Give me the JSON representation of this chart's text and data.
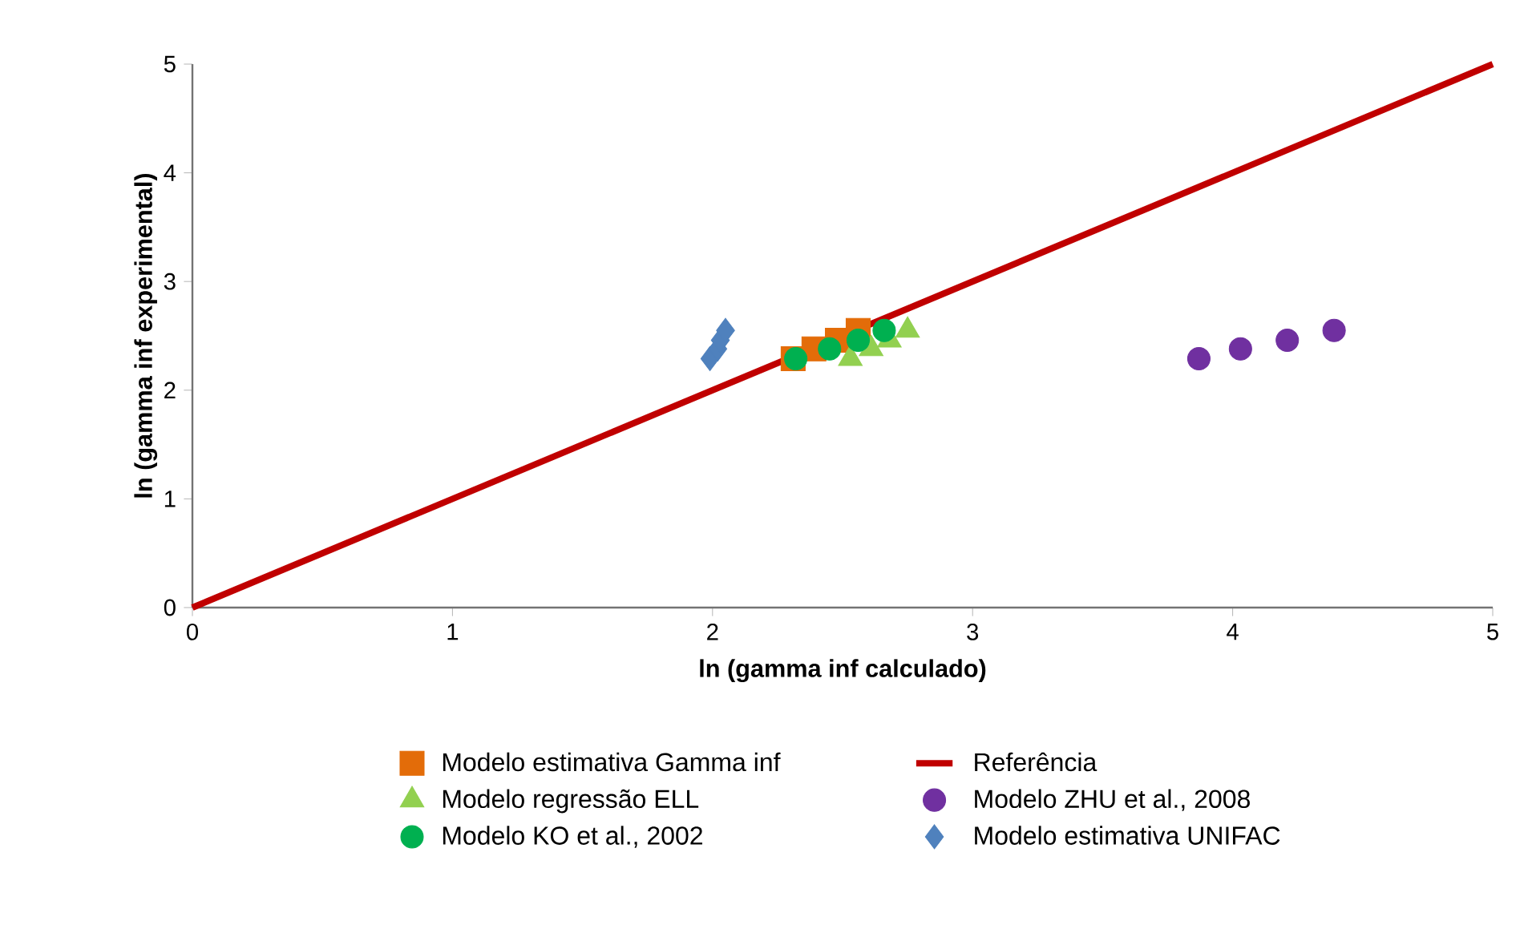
{
  "chart_data": {
    "type": "scatter",
    "xlabel": "ln (gamma  inf calculado)",
    "ylabel": "ln (gamma inf experimental)",
    "xlim": [
      0,
      5
    ],
    "ylim": [
      0,
      5
    ],
    "xticks": [
      0,
      1,
      2,
      3,
      4,
      5
    ],
    "yticks": [
      0,
      1,
      2,
      3,
      4,
      5
    ],
    "grid": false,
    "legend": "bottom",
    "series": [
      {
        "name": "Modelo estimativa  Gamma  inf",
        "marker": "square",
        "color": "#e36c09",
        "x": [
          2.31,
          2.39,
          2.48,
          2.56
        ],
        "values": [
          2.29,
          2.38,
          2.46,
          2.55
        ]
      },
      {
        "name": "Referência",
        "type": "line",
        "marker": "none",
        "line_style": "solid",
        "color": "#c00000",
        "x": [
          0,
          5
        ],
        "values": [
          0,
          5
        ]
      },
      {
        "name": "Modelo regressão ELL",
        "marker": "triangle",
        "color": "#92d050",
        "x": [
          2.53,
          2.61,
          2.68,
          2.75
        ],
        "values": [
          2.29,
          2.38,
          2.46,
          2.55
        ]
      },
      {
        "name": "Modelo ZHU et al.,  2008",
        "marker": "circle",
        "color": "#7030a0",
        "x": [
          3.87,
          4.03,
          4.21,
          4.39
        ],
        "values": [
          2.29,
          2.38,
          2.46,
          2.55
        ]
      },
      {
        "name": "Modelo KO et al., 2002",
        "marker": "circle",
        "color": "#00b050",
        "x": [
          2.32,
          2.45,
          2.56,
          2.66
        ],
        "values": [
          2.29,
          2.38,
          2.46,
          2.55
        ]
      },
      {
        "name": "Modelo estimativa  UNIFAC",
        "marker": "diamond",
        "color": "#4f81bd",
        "x": [
          1.99,
          2.02,
          2.03,
          2.05
        ],
        "values": [
          2.29,
          2.38,
          2.46,
          2.55
        ]
      }
    ]
  }
}
